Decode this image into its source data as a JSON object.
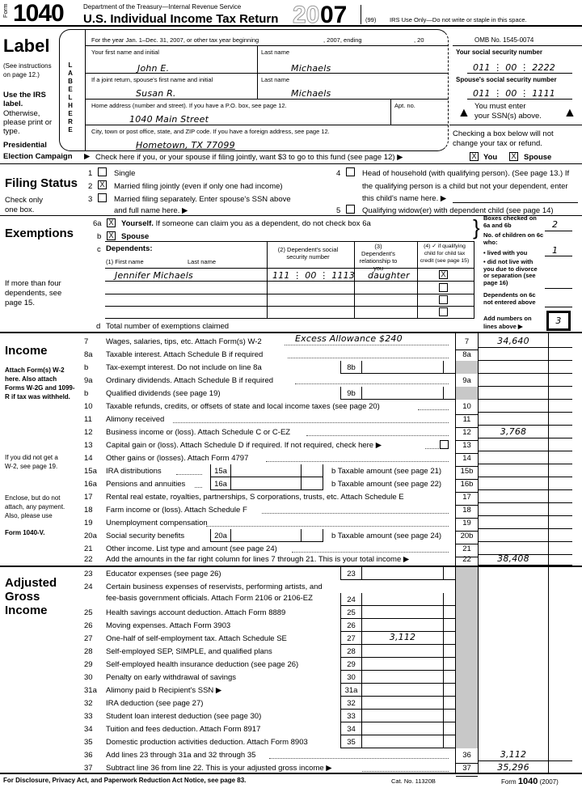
{
  "header": {
    "form_label": "Form",
    "form_number": "1040",
    "department": "Department of the Treasury—Internal Revenue Service",
    "title": "U.S. Individual Income Tax Return",
    "year_outline": "20",
    "year_bold": "07",
    "code": "(99)",
    "irs_use": "IRS Use Only—Do not write or staple in this space.",
    "tax_year_text": "For the year Jan. 1–Dec. 31, 2007, or other tax year beginning",
    "ending": ", 2007, ending",
    ", 20": ", 20",
    "omb": "OMB No. 1545-0074"
  },
  "label_section": {
    "title": "Label",
    "see": "(See instructions on page 12.)",
    "use_irs": "Use the IRS label.",
    "otherwise": "Otherwise, please print or type.",
    "presidential": "Presidential",
    "election": "Election Campaign",
    "vertical": "LABEL HERE"
  },
  "name": {
    "first_label": "Your first name and initial",
    "first": "John E.",
    "last_label": "Last name",
    "last": "Michaels",
    "sp_first_label": "If a joint return, spouse's first name and initial",
    "sp_first": "Susan R.",
    "sp_last_label": "Last name",
    "sp_last": "Michaels",
    "addr_label": "Home address (number and street). If you have a P.O. box, see page 12.",
    "addr": "1040 Main Street",
    "apt_label": "Apt. no.",
    "city_label": "City, town or post office, state, and ZIP code. If you have a foreign address, see page 12.",
    "city": "Hometown, TX 77099"
  },
  "ssn": {
    "your_label": "Your social security number",
    "your": [
      "011",
      "00",
      "2222"
    ],
    "spouse_label": "Spouse's social security number",
    "spouse": [
      "011",
      "00",
      "1111"
    ],
    "must_enter": "You must enter",
    "above": "your SSN(s) above.",
    "checking": "Checking a box below will not",
    "change": "change your tax or refund."
  },
  "campaign": {
    "text": "Check here if you, or your spouse if filing jointly, want $3 to go to this fund (see page 12) ▶",
    "you": "You",
    "spouse": "Spouse",
    "you_checked": true,
    "spouse_checked": true
  },
  "filing_status": {
    "title": "Filing Status",
    "note1": "Check only",
    "note2": "one box.",
    "selected": 2,
    "opt1": "Single",
    "opt2": "Married filing jointly (even if only one had income)",
    "opt3": "Married filing separately. Enter spouse's SSN above",
    "opt3b": "and full name here. ▶",
    "opt4": "Head of household (with qualifying person). (See page 13.) If",
    "opt4b": "the qualifying person is a child but not your dependent, enter",
    "opt4c": "this child's name here. ▶",
    "opt5": "Qualifying widow(er) with dependent child (see page 14)"
  },
  "exemptions": {
    "title": "Exemptions",
    "l6a": "6a",
    "yourself": "Yourself.",
    "yourself_rest": "If someone can claim you as a dependent, do not check box 6a",
    "lb": "b",
    "spouse": "Spouse",
    "lc": "c",
    "dependents": "Dependents:",
    "col1": "(1) First name",
    "col1b": "Last name",
    "col2": "(2) Dependent's social security number",
    "col3": "(3) Dependent's relationship to you",
    "col4": "(4) ✓ if qualifying child for child tax credit (see page 15)",
    "dep_name": "Jennifer Michaels",
    "dep_ssn": [
      "111",
      "00",
      "1113"
    ],
    "dep_rel": "daughter",
    "more": "If more than four dependents, see page 15.",
    "ld": "d",
    "total": "Total number of exemptions claimed",
    "boxes_checked": "Boxes checked on 6a and 6b",
    "boxes_val": "2",
    "children": "No. of children on 6c who:",
    "lived": "• lived with you",
    "lived_val": "1",
    "not_live": "• did not live with you due to divorce or separation (see page 16)",
    "not_entered": "Dependents on 6c not entered above",
    "add": "Add numbers on lines above ▶",
    "total_val": "3"
  },
  "income": {
    "title": "Income",
    "attach": "Attach Form(s) W-2 here. Also attach Forms W-2G and 1099-R if tax was withheld.",
    "no_w2": "If you did not get a W-2, see page 19.",
    "enclose": "Enclose, but do not attach, any payment. Also, please use",
    "form_v": "Form 1040-V.",
    "annotation": "Excess Allowance $240",
    "rows": [
      {
        "n": "7",
        "t": "Wages, salaries, tips, etc. Attach Form(s) W-2",
        "rn": "7",
        "ra": "34,640"
      },
      {
        "n": "8a",
        "t": "Taxable interest. Attach Schedule B if required",
        "rn": "8a",
        "ra": ""
      },
      {
        "n": "b",
        "t": "Tax-exempt interest. Do not include on line 8a",
        "ib": "8b",
        "rn": "",
        "gray": true
      },
      {
        "n": "9a",
        "t": "Ordinary dividends. Attach Schedule B if required",
        "rn": "9a",
        "ra": ""
      },
      {
        "n": "b",
        "t": "Qualified dividends (see page 19)",
        "ib": "9b",
        "rn": "",
        "gray": true
      },
      {
        "n": "10",
        "t": "Taxable refunds, credits, or offsets of state and local income taxes (see page 20)",
        "rn": "10",
        "ra": ""
      },
      {
        "n": "11",
        "t": "Alimony received",
        "rn": "11",
        "ra": ""
      },
      {
        "n": "12",
        "t": "Business income or (loss). Attach Schedule C or C-EZ",
        "rn": "12",
        "ra": "3,768"
      },
      {
        "n": "13",
        "t": "Capital gain or (loss). Attach Schedule D if required. If not required, check here ▶",
        "rn": "13",
        "ra": "",
        "cb": true
      },
      {
        "n": "14",
        "t": "Other gains or (losses). Attach Form 4797",
        "rn": "14",
        "ra": ""
      },
      {
        "n": "15a",
        "t": "IRA distributions",
        "sb": "15a",
        "bl": "b Taxable amount (see page 21)",
        "rn": "15b",
        "ra": ""
      },
      {
        "n": "16a",
        "t": "Pensions and annuities",
        "sb": "16a",
        "bl": "b Taxable amount (see page 22)",
        "rn": "16b",
        "ra": ""
      },
      {
        "n": "17",
        "t": "Rental real estate, royalties, partnerships, S corporations, trusts, etc. Attach Schedule E",
        "rn": "17",
        "ra": ""
      },
      {
        "n": "18",
        "t": "Farm income or (loss). Attach Schedule F",
        "rn": "18",
        "ra": ""
      },
      {
        "n": "19",
        "t": "Unemployment compensation",
        "rn": "19",
        "ra": ""
      },
      {
        "n": "20a",
        "t": "Social security benefits",
        "sb": "20a",
        "bl": "b Taxable amount (see page 24)",
        "rn": "20b",
        "ra": ""
      },
      {
        "n": "21",
        "t": "Other income. List type and amount (see page 24)",
        "rn": "21",
        "ra": ""
      },
      {
        "n": "22",
        "t": "Add the amounts in the far right column for lines 7 through 21. This is your total income ▶",
        "rn": "22",
        "ra": "38,408"
      }
    ]
  },
  "agi": {
    "title1": "Adjusted",
    "title2": "Gross",
    "title3": "Income",
    "rows": [
      {
        "n": "23",
        "t": "Educator expenses (see page 26)",
        "ib": "23"
      },
      {
        "n": "24",
        "t": "Certain business expenses of reservists, performing artists, and",
        "t2": "fee-basis government officials. Attach Form 2106 or 2106-EZ",
        "ib": "24"
      },
      {
        "n": "25",
        "t": "Health savings account deduction. Attach Form 8889",
        "ib": "25"
      },
      {
        "n": "26",
        "t": "Moving expenses. Attach Form 3903",
        "ib": "26"
      },
      {
        "n": "27",
        "t": "One-half of self-employment tax. Attach Schedule SE",
        "ib": "27",
        "ia": "3,112"
      },
      {
        "n": "28",
        "t": "Self-employed SEP, SIMPLE, and qualified plans",
        "ib": "28"
      },
      {
        "n": "29",
        "t": "Self-employed health insurance deduction (see page 26)",
        "ib": "29"
      },
      {
        "n": "30",
        "t": "Penalty on early withdrawal of savings",
        "ib": "30"
      },
      {
        "n": "31a",
        "t": "Alimony paid   b Recipient's SSN ▶",
        "ib": "31a"
      },
      {
        "n": "32",
        "t": "IRA deduction (see page 27)",
        "ib": "32"
      },
      {
        "n": "33",
        "t": "Student loan interest deduction (see page 30)",
        "ib": "33"
      },
      {
        "n": "34",
        "t": "Tuition and fees deduction. Attach Form 8917",
        "ib": "34"
      },
      {
        "n": "35",
        "t": "Domestic production activities deduction. Attach Form 8903",
        "ib": "35"
      },
      {
        "n": "36",
        "t": "Add lines 23 through 31a and 32 through 35",
        "rn": "36",
        "ra": "3,112"
      },
      {
        "n": "37",
        "t": "Subtract line 36 from line 22. This is your adjusted gross income ▶",
        "rn": "37",
        "ra": "35,296"
      }
    ]
  },
  "footer": {
    "notice": "For Disclosure, Privacy Act, and Paperwork Reduction Act Notice, see page 83.",
    "cat": "Cat. No. 11320B",
    "form": "Form",
    "num": "1040",
    "year": "(2007)"
  }
}
